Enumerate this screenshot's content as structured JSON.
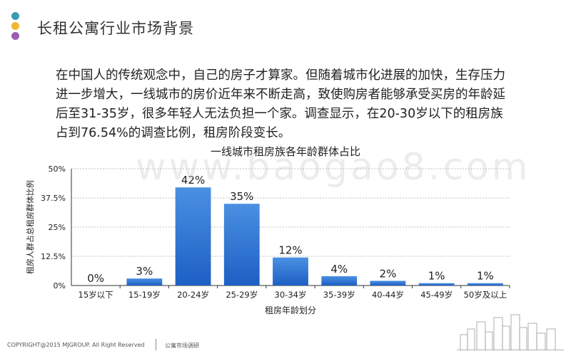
{
  "slide": {
    "title": "长租公寓行业市场背景",
    "body": "在中国人的传统观念中，自己的房子才算家。但随着城市化进展的加快，生存压力进一步增大，一线城市的房价近年来不断走高，致使购房者能够承受买房的年龄延后至31-35岁，很多年轻人无法负担一个家。调查显示，在20-30岁以下的租房族占到76.54%的调查比例，租房阶段变长。",
    "dots": [
      "#3a9bb4",
      "#f0b731",
      "#9b5fb5"
    ],
    "watermark": "www.baogao8.com",
    "footer_left": "COPYRIGHT@2015 MJGROUP. All Right Reserved",
    "footer_right": "公寓市场调研"
  },
  "chart_data": {
    "type": "bar",
    "title": "一线城市租房族各年龄群体占比",
    "xlabel": "租房年龄划分",
    "ylabel": "租房人群占总租房群体比例",
    "categories": [
      "15岁以下",
      "15-19岁",
      "20-24岁",
      "25-29岁",
      "30-34岁",
      "35-39岁",
      "40-44岁",
      "45-49岁",
      "50岁及以上"
    ],
    "values": [
      0,
      3,
      42,
      35,
      12,
      4,
      2,
      1,
      1
    ],
    "data_labels": [
      "0%",
      "3%",
      "42%",
      "35%",
      "12%",
      "4%",
      "2%",
      "1%",
      "1%"
    ],
    "yticks": [
      0,
      12.5,
      25,
      37.5,
      50
    ],
    "ytick_labels": [
      "0%",
      "12.5%",
      "25%",
      "37.5%",
      "50%"
    ],
    "ylim": [
      0,
      50
    ],
    "grid": true,
    "bar_color_top": "#4a90e2",
    "bar_color_bottom": "#1d5fc4"
  }
}
